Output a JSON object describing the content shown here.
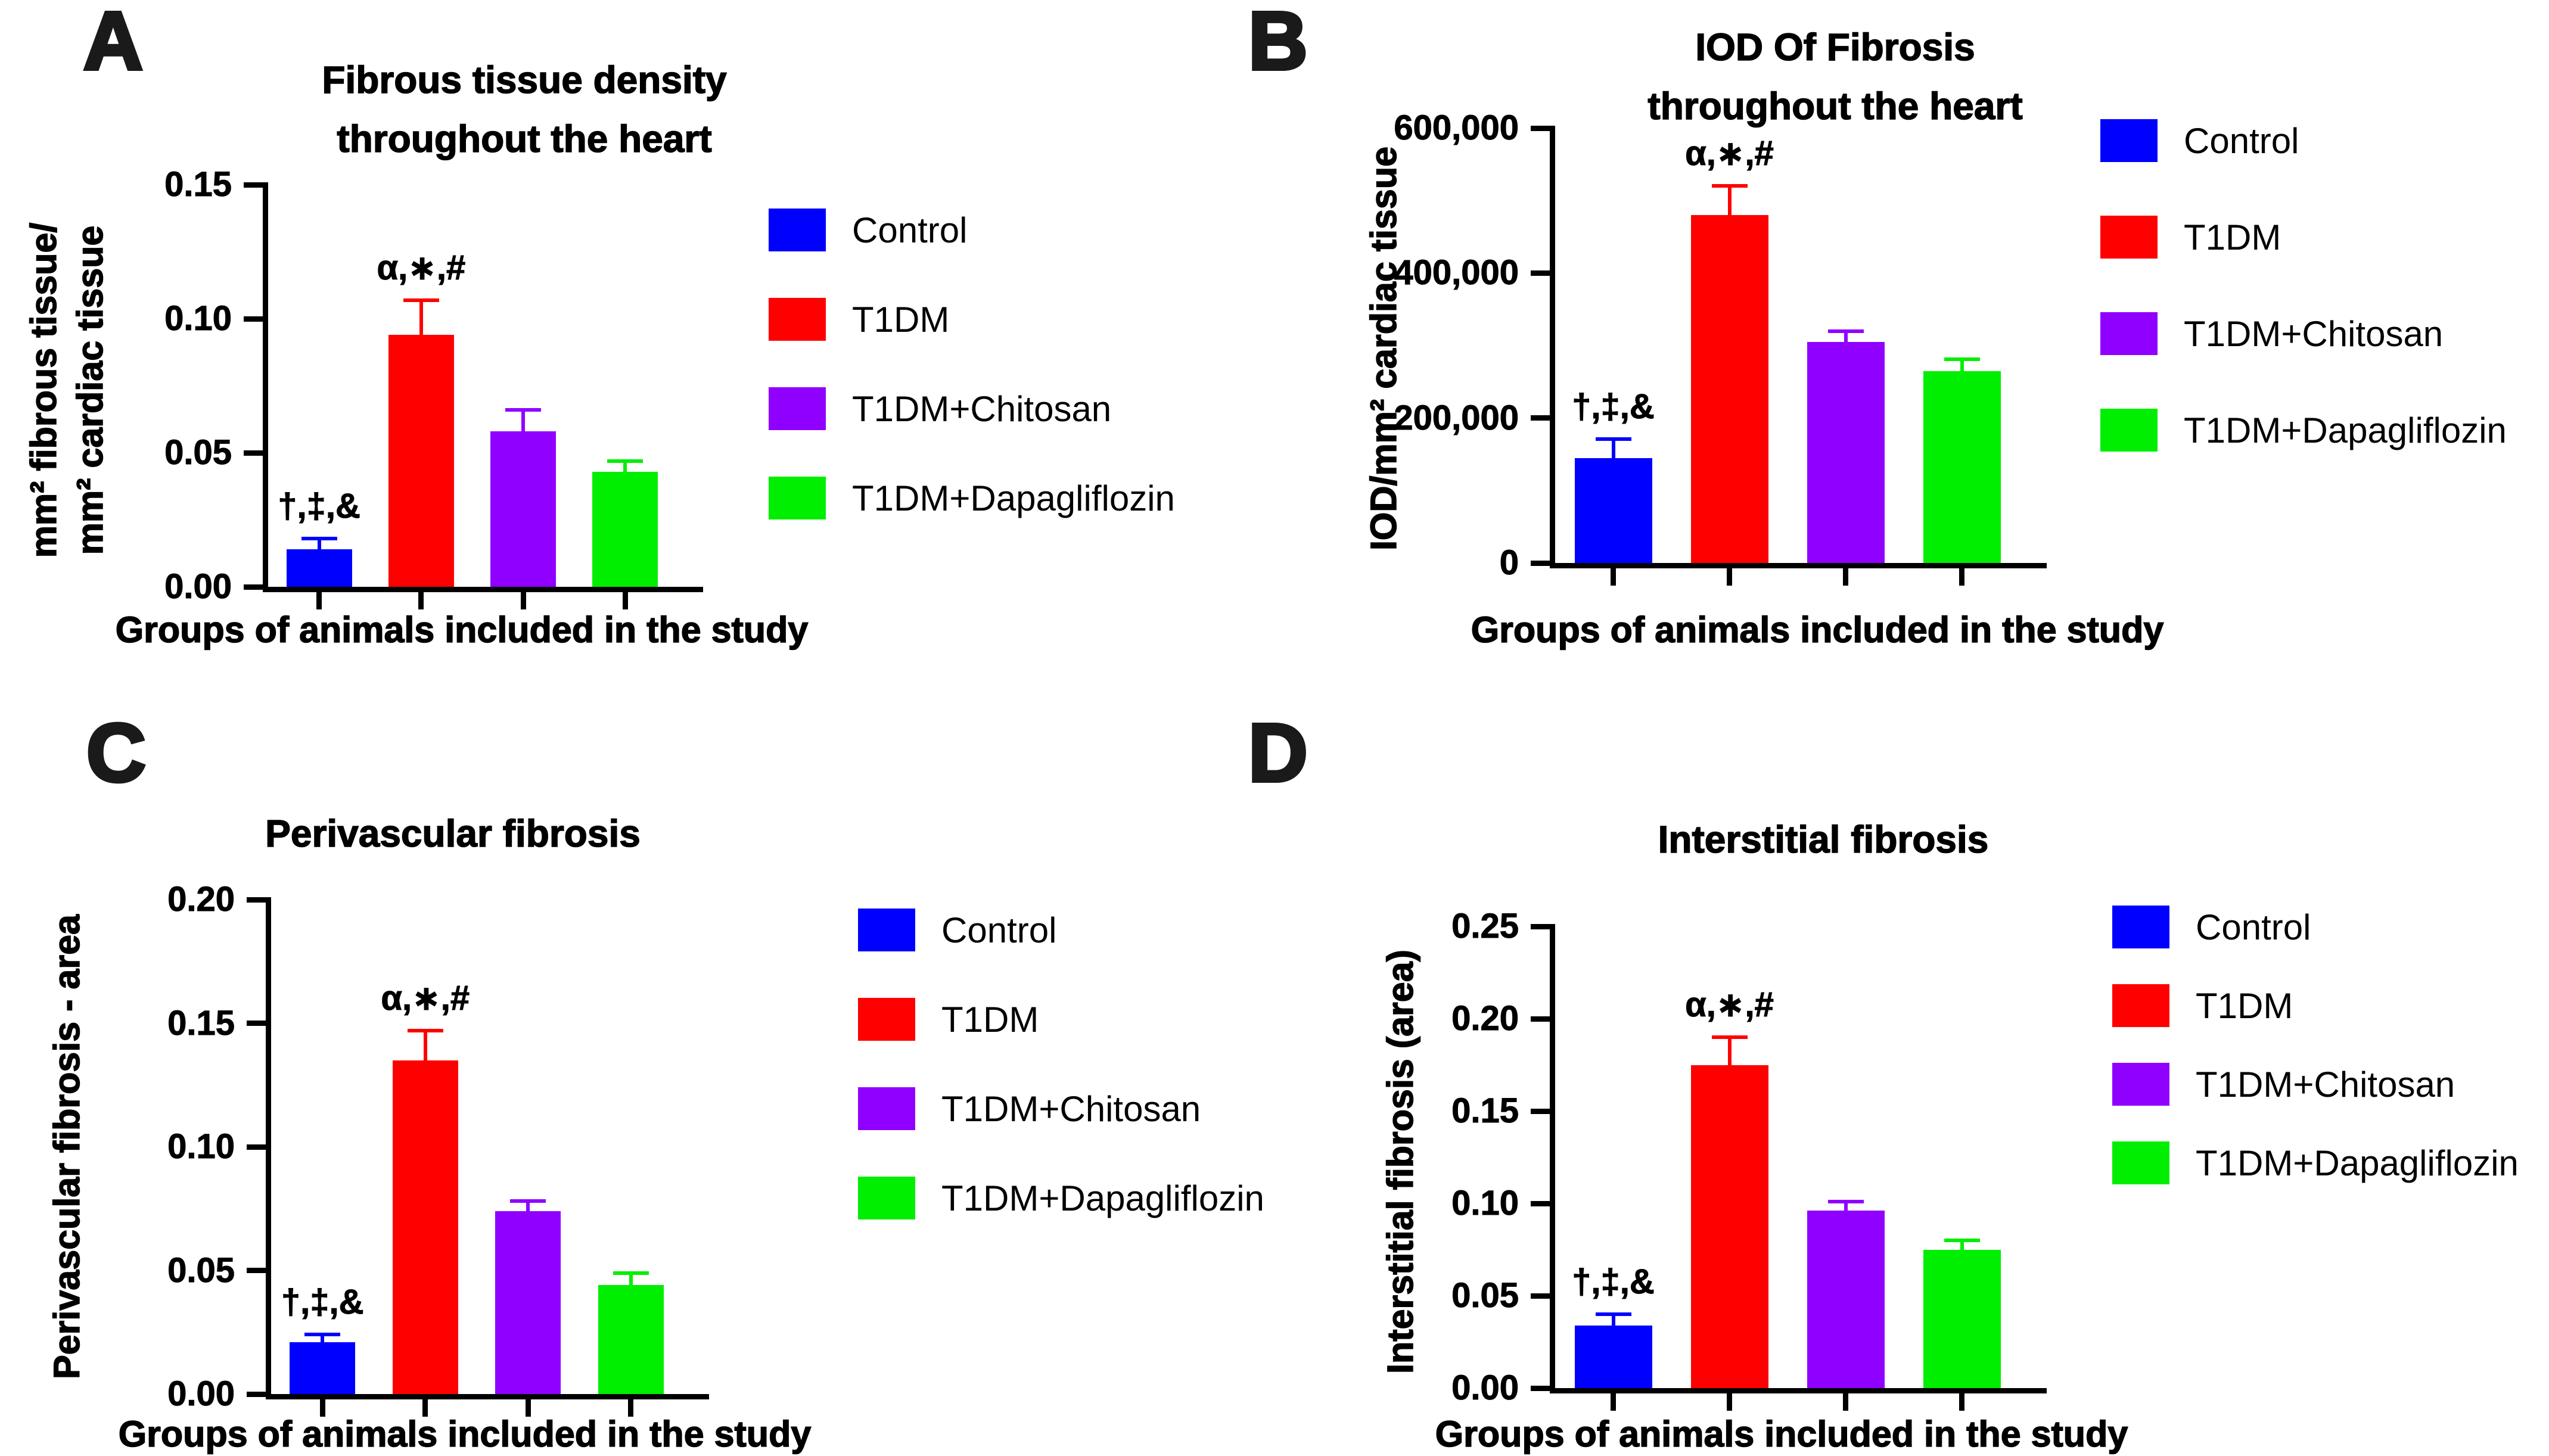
{
  "figure": {
    "background": "#FFFFFF",
    "groups": [
      {
        "name": "Control",
        "color": "#0000FF"
      },
      {
        "name": "T1DM",
        "color": "#FF0000"
      },
      {
        "name": "T1DM+Chitosan",
        "color": "#9000FF"
      },
      {
        "name": "T1DM+Dapagliflozin",
        "color": "#00EE00"
      }
    ],
    "significance_symbols": {
      "control": "†,‡,&",
      "t1dm": "α,∗,#"
    }
  },
  "chart_data": [
    {
      "id": "a",
      "type": "bar",
      "panel_letter": "A",
      "title": "Fibrous tissue density\nthroughout the heart",
      "ylabel": "mm² fibrous tissue/\nmm² cardiac tissue",
      "xlabel": "Groups of animals included in the study",
      "categories": [
        "Control",
        "T1DM",
        "T1DM+Chitosan",
        "T1DM+Dapagliflozin"
      ],
      "values": [
        0.014,
        0.094,
        0.058,
        0.043
      ],
      "errors": [
        0.004,
        0.013,
        0.008,
        0.004
      ],
      "annotations": [
        "†,‡,&",
        "α,∗,#",
        "",
        ""
      ],
      "ylim": [
        0,
        0.15
      ],
      "yticks": [
        0,
        0.05,
        0.1,
        0.15
      ],
      "ytick_labels": [
        "0.00",
        "0.05",
        "0.10",
        "0.15"
      ],
      "legend_position": "right",
      "grid": false
    },
    {
      "id": "b",
      "type": "bar",
      "panel_letter": "B",
      "title": "IOD Of Fibrosis\nthroughout the heart",
      "ylabel": "IOD/mm² cardiac tissue",
      "xlabel": "Groups of animals included in the study",
      "categories": [
        "Control",
        "T1DM",
        "T1DM+Chitosan",
        "T1DM+Dapagliflozin"
      ],
      "values": [
        145000,
        480000,
        305000,
        265000
      ],
      "errors": [
        26000,
        40000,
        15000,
        16000
      ],
      "annotations": [
        "†,‡,&",
        "α,∗,#",
        "",
        ""
      ],
      "ylim": [
        0,
        600000
      ],
      "yticks": [
        0,
        200000,
        400000,
        600000
      ],
      "ytick_labels": [
        "0",
        "200,000",
        "400,000",
        "600,000"
      ],
      "legend_position": "right",
      "grid": false
    },
    {
      "id": "c",
      "type": "bar",
      "panel_letter": "C",
      "title": "Perivascular fibrosis",
      "ylabel": "Perivascular fibrosis - area",
      "xlabel": "Groups of animals included in the study",
      "categories": [
        "Control",
        "T1DM",
        "T1DM+Chitosan",
        "T1DM+Dapagliflozin"
      ],
      "values": [
        0.021,
        0.135,
        0.074,
        0.044
      ],
      "errors": [
        0.003,
        0.012,
        0.004,
        0.005
      ],
      "annotations": [
        "†,‡,&",
        "α,∗,#",
        "",
        ""
      ],
      "ylim": [
        0,
        0.2
      ],
      "yticks": [
        0,
        0.05,
        0.1,
        0.15,
        0.2
      ],
      "ytick_labels": [
        "0.00",
        "0.05",
        "0.10",
        "0.15",
        "0.20"
      ],
      "legend_position": "right",
      "grid": false
    },
    {
      "id": "d",
      "type": "bar",
      "panel_letter": "D",
      "title": "Interstitial fibrosis",
      "ylabel": "Interstitial fibrosis (area)",
      "xlabel": "Groups of animals included in the study",
      "categories": [
        "Control",
        "T1DM",
        "T1DM+Chitosan",
        "T1DM+Dapagliflozin"
      ],
      "values": [
        0.034,
        0.175,
        0.096,
        0.075
      ],
      "errors": [
        0.006,
        0.015,
        0.005,
        0.005
      ],
      "annotations": [
        "†,‡,&",
        "α,∗,#",
        "",
        ""
      ],
      "ylim": [
        0,
        0.25
      ],
      "yticks": [
        0,
        0.05,
        0.1,
        0.15,
        0.2,
        0.25
      ],
      "ytick_labels": [
        "0.00",
        "0.05",
        "0.10",
        "0.15",
        "0.20",
        "0.25"
      ],
      "legend_position": "right",
      "grid": false
    }
  ]
}
